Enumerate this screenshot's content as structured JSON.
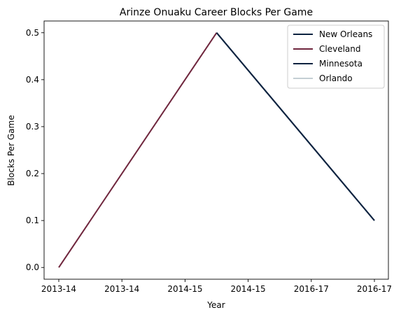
{
  "chart_data": {
    "type": "line",
    "title": "Arinze Onuaku Career Blocks Per Game",
    "xlabel": "Year",
    "ylabel": "Blocks Per Game",
    "x_tick_labels": [
      "2013-14",
      "2013-14",
      "2014-15",
      "2014-15",
      "2016-17",
      "2016-17"
    ],
    "yticks": [
      0.0,
      0.1,
      0.2,
      0.3,
      0.4,
      0.5
    ],
    "ytick_labels": [
      "0.0",
      "0.1",
      "0.2",
      "0.3",
      "0.4",
      "0.5"
    ],
    "ylim": [
      -0.025,
      0.525
    ],
    "grid": false,
    "legend_position": "top-right",
    "series": [
      {
        "name": "New Orleans",
        "color": "#0C2340",
        "x": [
          "2014-15",
          "2016-17"
        ],
        "values": [
          0.5,
          0.1
        ]
      },
      {
        "name": "Cleveland",
        "color": "#6F263D",
        "x": [
          "2013-14",
          "2014-15"
        ],
        "values": [
          0.0,
          0.5
        ]
      },
      {
        "name": "Minnesota",
        "color": "#0C2340",
        "x": [
          "2014-15",
          "2016-17"
        ],
        "values": [
          0.5,
          0.1
        ]
      },
      {
        "name": "Orlando",
        "color": "#C4CED4",
        "x": [],
        "values": []
      }
    ]
  }
}
